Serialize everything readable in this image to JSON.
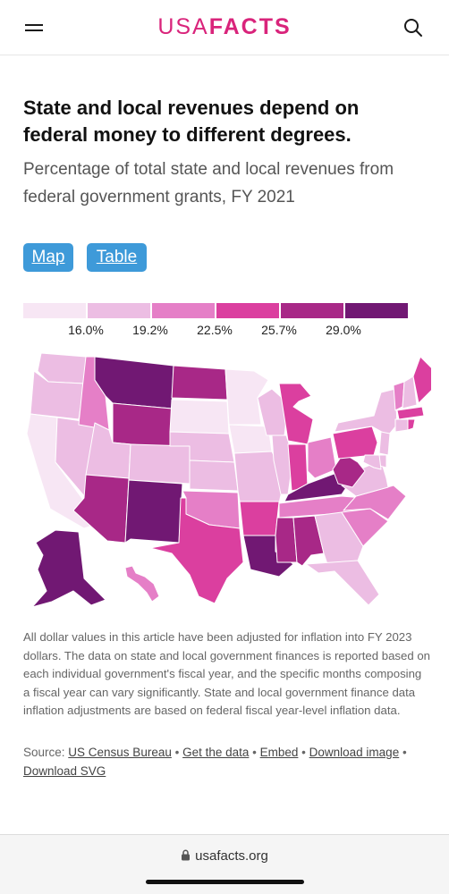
{
  "header": {
    "logo_usa": "USA",
    "logo_facts": "FACTS",
    "brand_color": "#d9247b",
    "menu_icon": "hamburger-menu-icon",
    "search_icon": "search-icon"
  },
  "article": {
    "title": "State and local revenues depend on federal money to different degrees.",
    "subtitle": "Percentage of total state and local revenues from federal government grants, FY 2021"
  },
  "view_toggle": {
    "map_label": "Map",
    "table_label": "Table",
    "button_color": "#3e9ad9"
  },
  "chart_data": {
    "type": "choropleth-map",
    "title": "",
    "legend": {
      "placement": "top",
      "thresholds": [
        "16.0%",
        "19.2%",
        "22.5%",
        "25.7%",
        "29.0%"
      ],
      "colors": [
        "#f7e6f4",
        "#ecbde3",
        "#e57fc7",
        "#db3f9f",
        "#a82887",
        "#711873"
      ]
    },
    "states": [
      {
        "state": "WA",
        "bin": 1
      },
      {
        "state": "OR",
        "bin": 1
      },
      {
        "state": "CA",
        "bin": 0
      },
      {
        "state": "NV",
        "bin": 1
      },
      {
        "state": "ID",
        "bin": 2
      },
      {
        "state": "MT",
        "bin": 5
      },
      {
        "state": "WY",
        "bin": 4
      },
      {
        "state": "UT",
        "bin": 1
      },
      {
        "state": "AZ",
        "bin": 4
      },
      {
        "state": "CO",
        "bin": 1
      },
      {
        "state": "NM",
        "bin": 5
      },
      {
        "state": "ND",
        "bin": 4
      },
      {
        "state": "SD",
        "bin": 0
      },
      {
        "state": "NE",
        "bin": 1
      },
      {
        "state": "KS",
        "bin": 1
      },
      {
        "state": "OK",
        "bin": 2
      },
      {
        "state": "TX",
        "bin": 3
      },
      {
        "state": "MN",
        "bin": 0
      },
      {
        "state": "IA",
        "bin": 0
      },
      {
        "state": "MO",
        "bin": 1
      },
      {
        "state": "AR",
        "bin": 3
      },
      {
        "state": "LA",
        "bin": 5
      },
      {
        "state": "WI",
        "bin": 1
      },
      {
        "state": "IL",
        "bin": 1
      },
      {
        "state": "MI",
        "bin": 3
      },
      {
        "state": "IN",
        "bin": 3
      },
      {
        "state": "OH",
        "bin": 2
      },
      {
        "state": "KY",
        "bin": 5
      },
      {
        "state": "TN",
        "bin": 2
      },
      {
        "state": "MS",
        "bin": 4
      },
      {
        "state": "AL",
        "bin": 4
      },
      {
        "state": "GA",
        "bin": 1
      },
      {
        "state": "FL",
        "bin": 1
      },
      {
        "state": "SC",
        "bin": 2
      },
      {
        "state": "NC",
        "bin": 2
      },
      {
        "state": "VA",
        "bin": 1
      },
      {
        "state": "WV",
        "bin": 4
      },
      {
        "state": "PA",
        "bin": 3
      },
      {
        "state": "NY",
        "bin": 1
      },
      {
        "state": "VT",
        "bin": 2
      },
      {
        "state": "NH",
        "bin": 1
      },
      {
        "state": "ME",
        "bin": 3
      },
      {
        "state": "MA",
        "bin": 3
      },
      {
        "state": "CT",
        "bin": 1
      },
      {
        "state": "RI",
        "bin": 3
      },
      {
        "state": "NJ",
        "bin": 1
      },
      {
        "state": "DE",
        "bin": 1
      },
      {
        "state": "MD",
        "bin": 1
      },
      {
        "state": "AK",
        "bin": 5
      },
      {
        "state": "HI",
        "bin": 2
      }
    ]
  },
  "note": "All dollar values in this article have been adjusted for inflation into FY 2023 dollars. The data on state and local government finances is reported based on each individual government's fiscal year, and the specific months composing a fiscal year can vary significantly. State and local government finance data inflation adjustments are based on federal fiscal year-level inflation data.",
  "source": {
    "prefix": "Source: ",
    "source_link": "US Census Bureau",
    "get_data": "Get the data",
    "embed": "Embed",
    "download_image": "Download image",
    "download_svg": "Download SVG",
    "separator": " • "
  },
  "browser": {
    "url": "usafacts.org",
    "lock_icon": "lock-icon"
  }
}
